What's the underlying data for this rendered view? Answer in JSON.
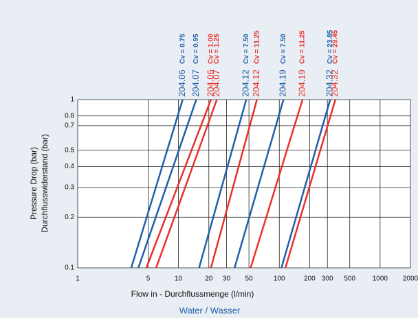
{
  "chart_data": {
    "type": "line",
    "y_label_lines": [
      "Pressure Drop (bar)",
      "Durchflusswiderstand (bar)"
    ],
    "x_label": "Flow in - Durchflussmenge (l/min)",
    "footer": "Water / Wasser",
    "xlog": true,
    "ylog": true,
    "grid": true,
    "xlim": [
      1,
      2000
    ],
    "ylim": [
      0.1,
      1
    ],
    "xticks": [
      1,
      5,
      10,
      20,
      30,
      50,
      100,
      200,
      300,
      500,
      1000,
      2000
    ],
    "yticks": [
      0.1,
      0.2,
      0.3,
      0.4,
      0.5,
      0.7,
      0.8,
      1
    ],
    "series": [
      {
        "name": "204.06",
        "note": "Cv = 0.75",
        "color": "#1f5fa8",
        "x": [
          3.4,
          11
        ],
        "y": [
          0.1,
          1
        ]
      },
      {
        "name": "204.07",
        "note": "Cv = 0.95",
        "color": "#1f5fa8",
        "x": [
          4,
          15
        ],
        "y": [
          0.1,
          1
        ]
      },
      {
        "name": "204.06",
        "note": "Cv = 1.00",
        "color": "#e8302a",
        "x": [
          4.8,
          21
        ],
        "y": [
          0.1,
          1
        ]
      },
      {
        "name": "204.07",
        "note": "Cv = 1.25",
        "color": "#e8302a",
        "x": [
          6,
          24
        ],
        "y": [
          0.1,
          1
        ]
      },
      {
        "name": "204.12",
        "note": "Cv = 7.50",
        "color": "#1f5fa8",
        "x": [
          16,
          47
        ],
        "y": [
          0.1,
          1
        ]
      },
      {
        "name": "204.12",
        "note": "Cv = 11.25",
        "color": "#e8302a",
        "x": [
          21,
          60
        ],
        "y": [
          0.1,
          1
        ]
      },
      {
        "name": "204.19",
        "note": "Cv = 7.50",
        "color": "#1f5fa8",
        "x": [
          36,
          110
        ],
        "y": [
          0.1,
          1
        ]
      },
      {
        "name": "204.19",
        "note": "Cv = 11.25",
        "color": "#e8302a",
        "x": [
          52,
          170
        ],
        "y": [
          0.1,
          1
        ]
      },
      {
        "name": "204.32",
        "note": "Cv = 23.85",
        "color": "#1f5fa8",
        "x": [
          105,
          320
        ],
        "y": [
          0.1,
          1
        ]
      },
      {
        "name": "204.32",
        "note": "Cv = 29.45",
        "color": "#e8302a",
        "x": [
          115,
          360
        ],
        "y": [
          0.1,
          1
        ]
      }
    ]
  }
}
